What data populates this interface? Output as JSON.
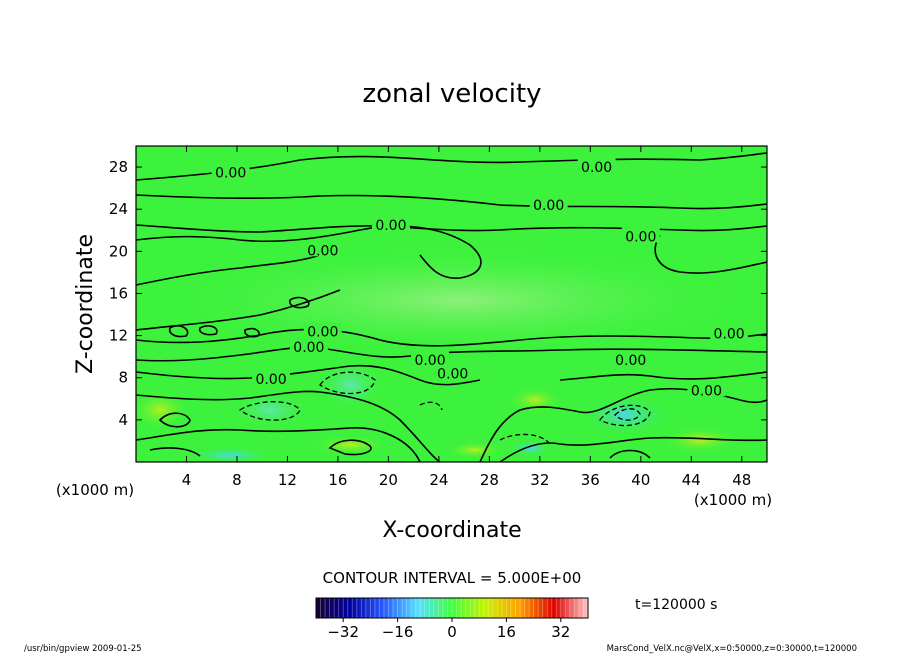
{
  "chart_data": {
    "type": "heatmap",
    "title": "zonal velocity",
    "xlabel": "X-coordinate",
    "ylabel": "Z-coordinate",
    "x_unit_label": "(x1000 m)",
    "y_unit_label": "(x1000 m)",
    "xlim": [
      0,
      50
    ],
    "ylim": [
      0,
      30
    ],
    "x_ticks": [
      4,
      8,
      12,
      16,
      20,
      24,
      28,
      32,
      36,
      40,
      44,
      48
    ],
    "y_ticks": [
      4,
      8,
      12,
      16,
      20,
      24,
      28
    ],
    "contour_interval_label": "CONTOUR INTERVAL = 5.000E+00",
    "time_label": "t=120000 s",
    "colorbar": {
      "ticks": [
        -32,
        -16,
        0,
        16,
        32
      ],
      "range": [
        -40,
        40
      ],
      "colors": [
        "#1a0033",
        "#0000a0",
        "#2a5cff",
        "#55e0ff",
        "#40ff40",
        "#c8f000",
        "#ffa000",
        "#e00000",
        "#ffc8c8"
      ]
    },
    "contour_labels": [
      {
        "text": "0.00",
        "x": 7.5,
        "y": 27.5
      },
      {
        "text": "0.00",
        "x": 36.5,
        "y": 28.0
      },
      {
        "text": "0.00",
        "x": 32.7,
        "y": 24.4
      },
      {
        "text": "0.00",
        "x": 20.2,
        "y": 22.5
      },
      {
        "text": "0.00",
        "x": 40.0,
        "y": 21.4
      },
      {
        "text": "0.00",
        "x": 14.8,
        "y": 20.1
      },
      {
        "text": "0.00",
        "x": 14.8,
        "y": 12.4
      },
      {
        "text": "0.00",
        "x": 13.7,
        "y": 10.9
      },
      {
        "text": "0.00",
        "x": 23.3,
        "y": 9.7
      },
      {
        "text": "0.00",
        "x": 39.2,
        "y": 9.7
      },
      {
        "text": "0.00",
        "x": 25.1,
        "y": 8.4
      },
      {
        "text": "0.00",
        "x": 10.7,
        "y": 7.9
      },
      {
        "text": "0.00",
        "x": 47.0,
        "y": 12.2
      },
      {
        "text": "0.00",
        "x": 45.2,
        "y": 6.8
      }
    ]
  },
  "footer": {
    "left": "/usr/bin/gpview  2009-01-25",
    "right": "MarsCond_VelX.nc@VelX,x=0:50000,z=0:30000,t=120000"
  }
}
